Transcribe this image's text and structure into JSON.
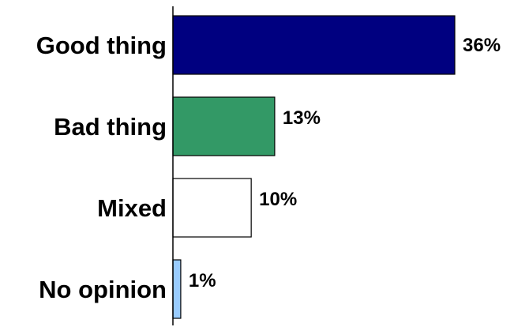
{
  "chart_data": {
    "type": "bar",
    "orientation": "horizontal",
    "title": "",
    "xlabel": "",
    "ylabel": "",
    "categories": [
      "Good thing",
      "Bad thing",
      "Mixed",
      "No opinion"
    ],
    "values": [
      36,
      13,
      10,
      1
    ],
    "value_labels": [
      "36%",
      "13%",
      "10%",
      "1%"
    ],
    "colors": [
      "#000080",
      "#339966",
      "#ffffff",
      "#99ccff"
    ],
    "xlim": [
      0,
      40
    ],
    "grid": false,
    "legend": "none"
  }
}
